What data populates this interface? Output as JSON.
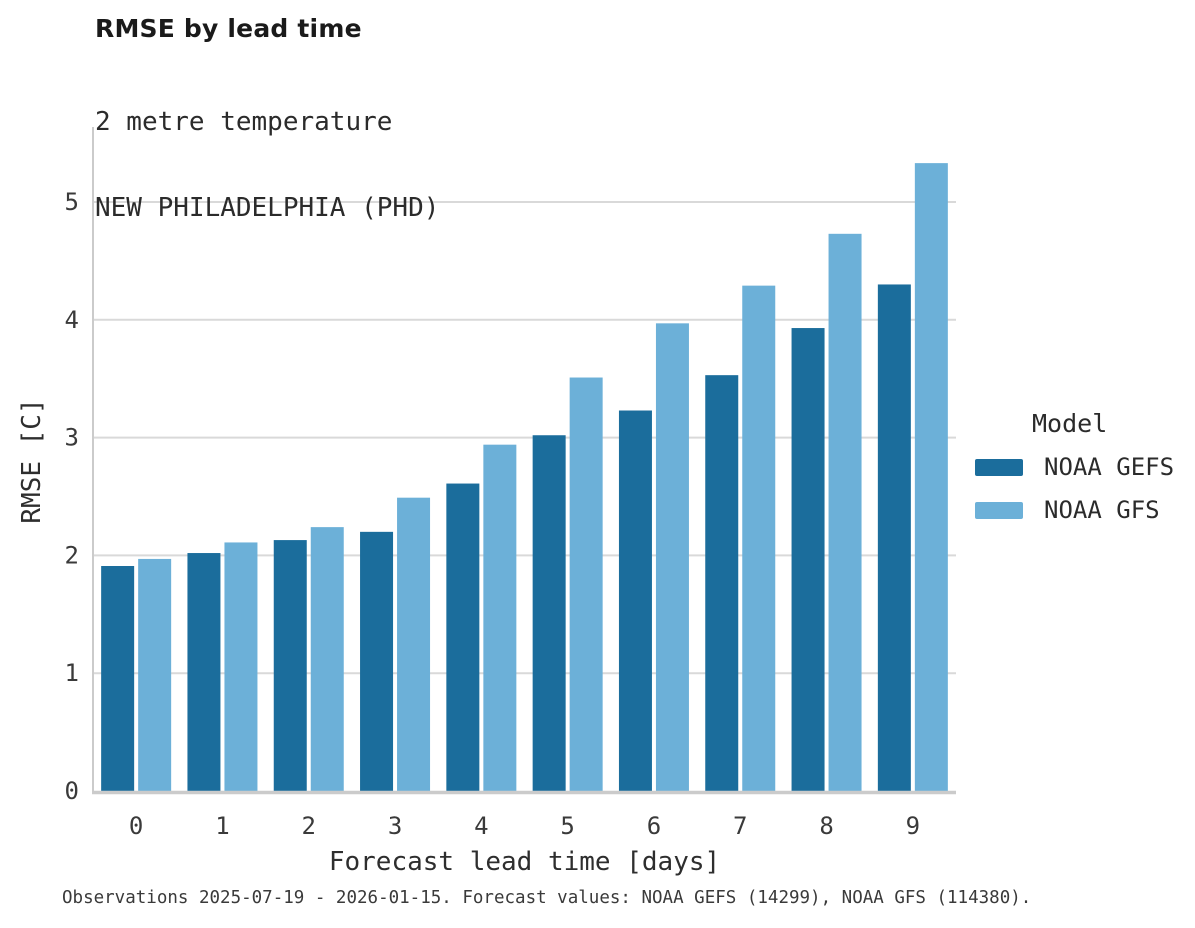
{
  "header": {
    "title": "RMSE by lead time",
    "subtitle_line1": "2 metre temperature",
    "subtitle_line2": "NEW PHILADELPHIA (PHD)"
  },
  "legend": {
    "title": "Model",
    "entries": [
      {
        "label": "NOAA GEFS",
        "color": "#1b6d9c"
      },
      {
        "label": "NOAA GFS",
        "color": "#6cb0d8"
      }
    ]
  },
  "footer": {
    "caption": "Observations 2025-07-19 - 2026-01-15. Forecast values: NOAA GEFS (14299), NOAA GFS (114380)."
  },
  "chart_data": {
    "type": "bar",
    "title": "RMSE by lead time",
    "subtitle": [
      "2 metre temperature",
      "NEW PHILADELPHIA (PHD)"
    ],
    "xlabel": "Forecast lead time [days]",
    "ylabel": "RMSE [C]",
    "categories": [
      "0",
      "1",
      "2",
      "3",
      "4",
      "5",
      "6",
      "7",
      "8",
      "9"
    ],
    "series": [
      {
        "name": "NOAA GEFS",
        "color": "#1b6d9c",
        "values": [
          1.91,
          2.02,
          2.13,
          2.2,
          2.61,
          3.02,
          3.23,
          3.53,
          3.93,
          4.3
        ]
      },
      {
        "name": "NOAA GFS",
        "color": "#6cb0d8",
        "values": [
          1.97,
          2.11,
          2.24,
          2.49,
          2.94,
          3.51,
          3.97,
          4.29,
          4.73,
          5.33
        ]
      }
    ],
    "yticks": [
      0,
      1,
      2,
      3,
      4,
      5
    ],
    "ylim": [
      0,
      5.64
    ],
    "grid": "horizontal-only",
    "grid_color": "#d9d9d9",
    "axis_color": "#cbcbcb",
    "tick_label_color": "#3a3a3a",
    "legend_position": "right",
    "legend_title": "Model"
  }
}
